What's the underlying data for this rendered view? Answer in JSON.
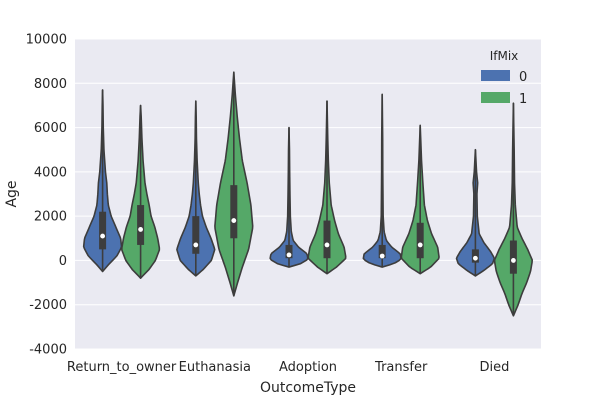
{
  "chart_data": {
    "type": "violin",
    "title": "",
    "xlabel": "OutcomeType",
    "ylabel": "Age",
    "ylim": [
      -4000,
      10000
    ],
    "yticks": [
      -4000,
      -2000,
      0,
      2000,
      4000,
      6000,
      8000,
      10000
    ],
    "grid": true,
    "legend": {
      "title": "IfMix",
      "position": "top-right"
    },
    "categories": [
      "Return_to_owner",
      "Euthanasia",
      "Adoption",
      "Transfer",
      "Died"
    ],
    "series": [
      {
        "name": "0",
        "color": "#4c72b0",
        "violins": [
          {
            "min": -500,
            "max": 7700,
            "q1": 500,
            "median": 1100,
            "q3": 2200,
            "profile": [
              [
                -500,
                0
              ],
              [
                -200,
                0.3
              ],
              [
                200,
                0.75
              ],
              [
                600,
                1.0
              ],
              [
                1000,
                0.95
              ],
              [
                1500,
                0.7
              ],
              [
                2000,
                0.45
              ],
              [
                2500,
                0.3
              ],
              [
                3000,
                0.25
              ],
              [
                3500,
                0.22
              ],
              [
                4000,
                0.15
              ],
              [
                5000,
                0.07
              ],
              [
                6000,
                0.035
              ],
              [
                7000,
                0.02
              ],
              [
                7700,
                0
              ]
            ]
          },
          {
            "min": -700,
            "max": 7200,
            "q1": 300,
            "median": 700,
            "q3": 2000,
            "profile": [
              [
                -700,
                0
              ],
              [
                -400,
                0.4
              ],
              [
                0,
                0.82
              ],
              [
                500,
                1.0
              ],
              [
                1000,
                0.8
              ],
              [
                1500,
                0.55
              ],
              [
                2000,
                0.35
              ],
              [
                2500,
                0.25
              ],
              [
                3000,
                0.18
              ],
              [
                3500,
                0.13
              ],
              [
                4500,
                0.07
              ],
              [
                5500,
                0.035
              ],
              [
                6500,
                0.02
              ],
              [
                7200,
                0
              ]
            ]
          },
          {
            "min": -300,
            "max": 6000,
            "q1": 100,
            "median": 250,
            "q3": 700,
            "profile": [
              [
                -300,
                0
              ],
              [
                -150,
                0.6
              ],
              [
                50,
                1.0
              ],
              [
                300,
                0.95
              ],
              [
                600,
                0.5
              ],
              [
                900,
                0.22
              ],
              [
                1300,
                0.12
              ],
              [
                2000,
                0.07
              ],
              [
                3000,
                0.05
              ],
              [
                4000,
                0.035
              ],
              [
                5000,
                0.025
              ],
              [
                6000,
                0
              ]
            ]
          },
          {
            "min": -300,
            "max": 7500,
            "q1": 100,
            "median": 200,
            "q3": 700,
            "profile": [
              [
                -300,
                0
              ],
              [
                -150,
                0.6
              ],
              [
                50,
                1.0
              ],
              [
                300,
                0.95
              ],
              [
                600,
                0.5
              ],
              [
                900,
                0.22
              ],
              [
                1300,
                0.1
              ],
              [
                2000,
                0.05
              ],
              [
                3000,
                0.04
              ],
              [
                4000,
                0.03
              ],
              [
                5500,
                0.025
              ],
              [
                7500,
                0
              ]
            ]
          },
          {
            "min": -700,
            "max": 5000,
            "q1": -100,
            "median": 100,
            "q3": 500,
            "profile": [
              [
                -700,
                0
              ],
              [
                -450,
                0.45
              ],
              [
                -150,
                0.9
              ],
              [
                100,
                1.0
              ],
              [
                400,
                0.8
              ],
              [
                800,
                0.45
              ],
              [
                1200,
                0.2
              ],
              [
                2000,
                0.1
              ],
              [
                3000,
                0.08
              ],
              [
                3500,
                0.12
              ],
              [
                4000,
                0.06
              ],
              [
                5000,
                0
              ]
            ]
          }
        ]
      },
      {
        "name": "1",
        "color": "#55a868",
        "violins": [
          {
            "min": -800,
            "max": 7000,
            "q1": 700,
            "median": 1400,
            "q3": 2500,
            "profile": [
              [
                -800,
                0
              ],
              [
                -400,
                0.45
              ],
              [
                0,
                0.78
              ],
              [
                500,
                1.0
              ],
              [
                1000,
                0.9
              ],
              [
                1500,
                0.75
              ],
              [
                2000,
                0.55
              ],
              [
                2500,
                0.45
              ],
              [
                3000,
                0.33
              ],
              [
                3500,
                0.23
              ],
              [
                4500,
                0.13
              ],
              [
                5500,
                0.07
              ],
              [
                6500,
                0.03
              ],
              [
                7000,
                0
              ]
            ]
          },
          {
            "min": -1600,
            "max": 8500,
            "q1": 1000,
            "median": 1800,
            "q3": 3400,
            "profile": [
              [
                -1600,
                0
              ],
              [
                -1000,
                0.2
              ],
              [
                -300,
                0.45
              ],
              [
                500,
                0.78
              ],
              [
                1500,
                1.0
              ],
              [
                2500,
                0.9
              ],
              [
                3500,
                0.7
              ],
              [
                4500,
                0.45
              ],
              [
                5500,
                0.3
              ],
              [
                6500,
                0.18
              ],
              [
                7500,
                0.08
              ],
              [
                8500,
                0
              ]
            ]
          },
          {
            "min": -600,
            "max": 7200,
            "q1": 100,
            "median": 700,
            "q3": 1800,
            "profile": [
              [
                -600,
                0
              ],
              [
                -300,
                0.5
              ],
              [
                100,
                1.0
              ],
              [
                600,
                0.9
              ],
              [
                1200,
                0.6
              ],
              [
                1800,
                0.4
              ],
              [
                2500,
                0.22
              ],
              [
                3500,
                0.12
              ],
              [
                4500,
                0.07
              ],
              [
                5500,
                0.04
              ],
              [
                7200,
                0
              ]
            ]
          },
          {
            "min": -600,
            "max": 6100,
            "q1": 100,
            "median": 700,
            "q3": 1700,
            "profile": [
              [
                -600,
                0
              ],
              [
                -300,
                0.55
              ],
              [
                100,
                1.0
              ],
              [
                600,
                0.92
              ],
              [
                1200,
                0.6
              ],
              [
                1800,
                0.38
              ],
              [
                2500,
                0.22
              ],
              [
                3500,
                0.14
              ],
              [
                4500,
                0.07
              ],
              [
                6100,
                0
              ]
            ]
          },
          {
            "min": -2500,
            "max": 7100,
            "q1": -600,
            "median": 0,
            "q3": 900,
            "profile": [
              [
                -2500,
                0
              ],
              [
                -2000,
                0.25
              ],
              [
                -1500,
                0.45
              ],
              [
                -1000,
                0.7
              ],
              [
                -500,
                0.9
              ],
              [
                0,
                1.0
              ],
              [
                500,
                0.75
              ],
              [
                1000,
                0.45
              ],
              [
                1500,
                0.2
              ],
              [
                2500,
                0.1
              ],
              [
                3500,
                0.06
              ],
              [
                5000,
                0.04
              ],
              [
                7100,
                0
              ]
            ]
          }
        ]
      }
    ]
  }
}
